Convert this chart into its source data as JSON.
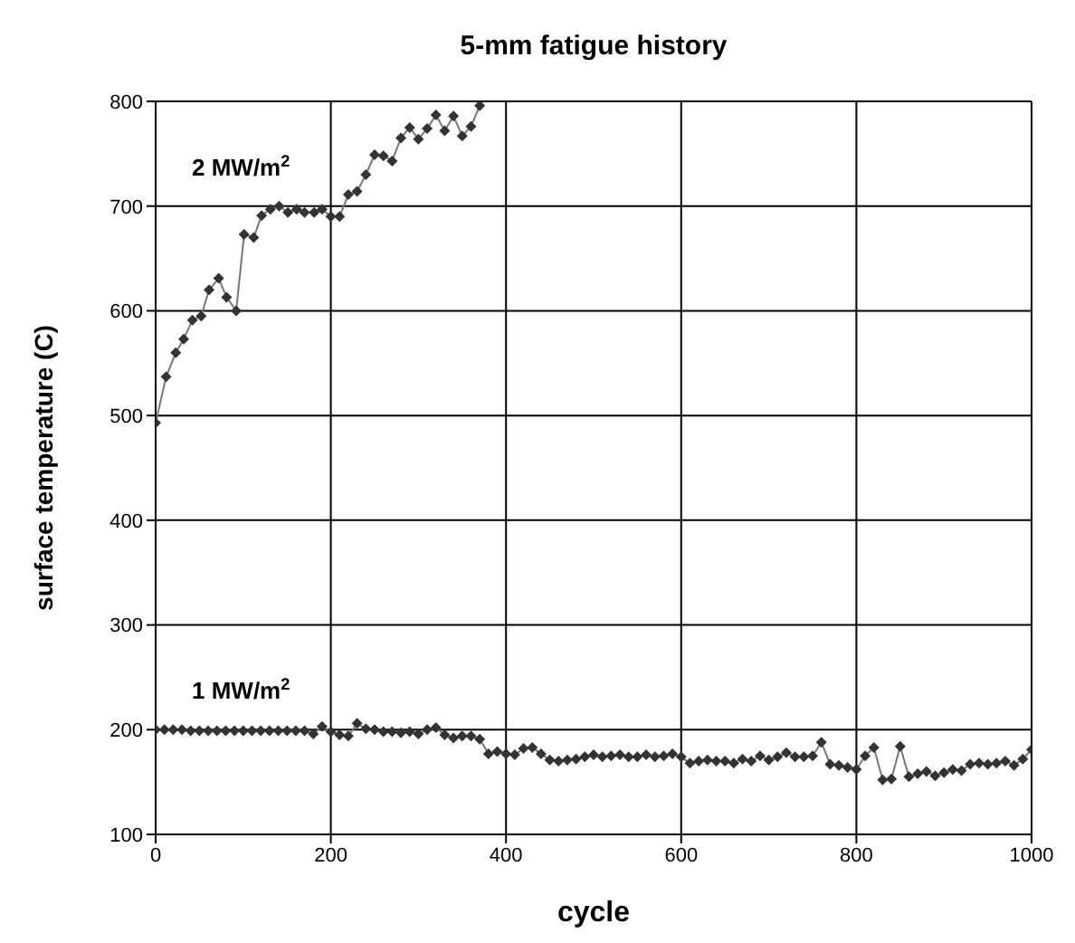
{
  "chart_data": {
    "type": "line",
    "title": "5-mm fatigue history",
    "xlabel": "cycle",
    "ylabel": "surface temperature (C)",
    "xlim": [
      0,
      1000
    ],
    "xticks": [
      0,
      200,
      400,
      600,
      800,
      1000
    ],
    "ylim": [
      100,
      800
    ],
    "yticks": [
      100,
      200,
      300,
      400,
      500,
      600,
      700,
      800
    ],
    "grid": true,
    "marker": "diamond",
    "line_style": "solid",
    "annotations": [
      "2 MW/m$^{2}$",
      "1 MW/m$^{2}$"
    ],
    "series": [
      {
        "color": "#333333",
        "x": [
          0,
          12,
          23,
          32,
          42,
          52,
          61,
          72,
          81,
          92,
          101,
          112,
          121,
          131,
          141,
          151,
          161,
          170,
          181,
          190,
          200,
          210,
          220,
          230,
          240,
          250,
          260,
          270,
          280,
          290,
          300,
          310,
          320,
          330,
          340,
          350,
          360,
          370
        ],
        "values": [
          493,
          537,
          560,
          573,
          591,
          595,
          620,
          631,
          613,
          600,
          673,
          670,
          691,
          697,
          700,
          694,
          697,
          694,
          694,
          697,
          690,
          690,
          711,
          714,
          730,
          749,
          748,
          743,
          765,
          775,
          764,
          774,
          787,
          772,
          786,
          767,
          776,
          796
        ]
      },
      {
        "color": "#333333",
        "x": [
          0,
          10,
          20,
          30,
          40,
          50,
          60,
          70,
          80,
          90,
          100,
          110,
          120,
          130,
          140,
          150,
          160,
          170,
          180,
          190,
          200,
          210,
          220,
          230,
          240,
          250,
          260,
          270,
          280,
          290,
          300,
          310,
          320,
          330,
          340,
          350,
          360,
          370,
          380,
          390,
          400,
          410,
          420,
          430,
          440,
          450,
          460,
          470,
          480,
          490,
          500,
          510,
          520,
          530,
          540,
          550,
          560,
          570,
          580,
          590,
          600,
          610,
          620,
          630,
          640,
          650,
          660,
          670,
          680,
          690,
          700,
          710,
          720,
          730,
          740,
          750,
          760,
          770,
          780,
          790,
          800,
          810,
          820,
          830,
          840,
          850,
          860,
          870,
          880,
          890,
          900,
          910,
          920,
          930,
          940,
          950,
          960,
          970,
          980,
          990,
          1000
        ],
        "values": [
          200,
          200,
          200,
          200,
          199,
          199,
          199,
          199,
          199,
          199,
          199,
          199,
          199,
          199,
          199,
          199,
          199,
          199,
          196,
          203,
          198,
          195,
          194,
          206,
          201,
          200,
          198,
          198,
          197,
          198,
          196,
          200,
          202,
          195,
          192,
          194,
          194,
          191,
          177,
          179,
          177,
          176,
          182,
          183,
          177,
          171,
          170,
          171,
          172,
          174,
          176,
          174,
          175,
          176,
          174,
          174,
          176,
          174,
          175,
          177,
          174,
          168,
          170,
          171,
          170,
          170,
          168,
          172,
          170,
          175,
          171,
          174,
          178,
          174,
          174,
          175,
          188,
          167,
          166,
          164,
          162,
          175,
          183,
          152,
          153,
          184,
          155,
          158,
          160,
          156,
          159,
          162,
          161,
          167,
          168,
          167,
          168,
          170,
          166,
          172,
          181
        ]
      }
    ]
  }
}
